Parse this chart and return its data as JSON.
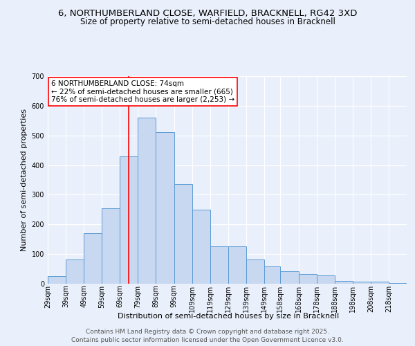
{
  "title_line1": "6, NORTHUMBERLAND CLOSE, WARFIELD, BRACKNELL, RG42 3XD",
  "title_line2": "Size of property relative to semi-detached houses in Bracknell",
  "xlabel": "Distribution of semi-detached houses by size in Bracknell",
  "ylabel": "Number of semi-detached properties",
  "annotation_title": "6 NORTHUMBERLAND CLOSE: 74sqm",
  "annotation_line2": "← 22% of semi-detached houses are smaller (665)",
  "annotation_line3": "76% of semi-detached houses are larger (2,253) →",
  "footer_line1": "Contains HM Land Registry data © Crown copyright and database right 2025.",
  "footer_line2": "Contains public sector information licensed under the Open Government Licence v3.0.",
  "property_size": 74,
  "bin_edges": [
    29,
    39,
    49,
    59,
    69,
    79,
    89,
    99,
    109,
    119,
    129,
    139,
    149,
    158,
    168,
    178,
    188,
    198,
    208,
    218,
    228
  ],
  "bar_heights": [
    25,
    82,
    170,
    255,
    430,
    560,
    510,
    335,
    250,
    125,
    125,
    82,
    58,
    43,
    33,
    27,
    10,
    8,
    8,
    2
  ],
  "bar_color": "#c8d8f0",
  "bar_edge_color": "#5b9bd5",
  "marker_color": "red",
  "bg_color": "#eaf0fb",
  "grid_color": "white",
  "annotation_box_color": "white",
  "annotation_box_edge": "red",
  "title_fontsize": 9.5,
  "subtitle_fontsize": 8.5,
  "axis_label_fontsize": 8,
  "tick_fontsize": 7,
  "annotation_fontsize": 7.5,
  "footer_fontsize": 6.5
}
